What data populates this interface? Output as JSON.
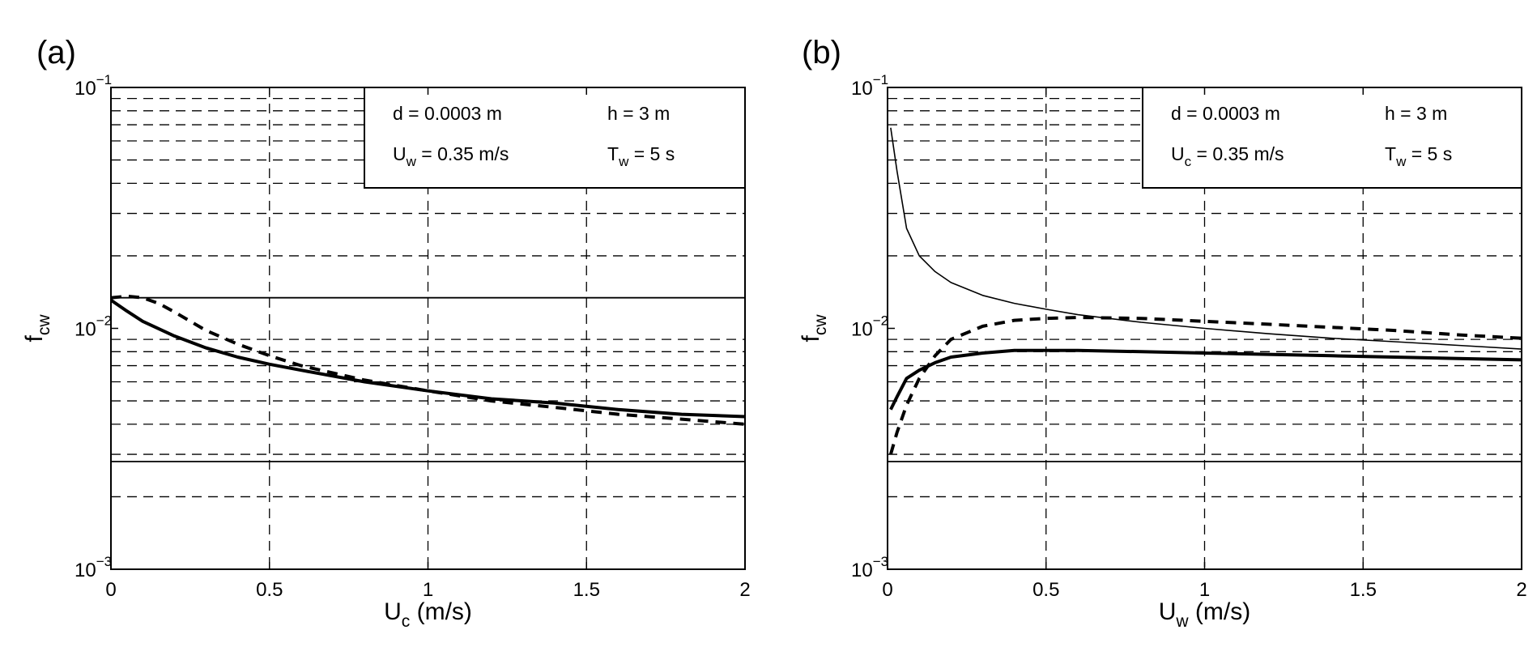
{
  "chart_data": [
    {
      "panel": "(a)",
      "type": "line",
      "xlabel": {
        "main": "U",
        "sub": "c",
        "unit": "(m/s)"
      },
      "ylabel": {
        "main": "f",
        "sub": "cw"
      },
      "xlim": [
        0,
        2
      ],
      "ylim": [
        0.001,
        0.1
      ],
      "yscale": "log",
      "grid": true,
      "xticks": [
        "0",
        "0.5",
        "1",
        "1.5",
        "2"
      ],
      "yticks": [
        {
          "base": "10",
          "exp": "−3"
        },
        {
          "base": "10",
          "exp": "−2"
        },
        {
          "base": "10",
          "exp": "−1"
        }
      ],
      "annotation": {
        "items": [
          {
            "main": "d = 0.0003 m",
            "sub": "",
            "rest": ""
          },
          {
            "main": "h = 3 m",
            "sub": "",
            "rest": ""
          },
          {
            "main": "U",
            "sub": "w",
            "rest": " = 0.35 m/s"
          },
          {
            "main": "T",
            "sub": "w",
            "rest": " = 5 s"
          }
        ]
      },
      "hlines": [
        0.0134,
        0.0028
      ],
      "series": [
        {
          "style": "solid-thick",
          "x": [
            0,
            0.05,
            0.1,
            0.2,
            0.3,
            0.4,
            0.5,
            0.6,
            0.8,
            1.0,
            1.2,
            1.4,
            1.6,
            1.8,
            2.0
          ],
          "y": [
            0.0131,
            0.0118,
            0.0107,
            0.0093,
            0.0083,
            0.0076,
            0.0071,
            0.0067,
            0.006,
            0.0055,
            0.0051,
            0.0049,
            0.0046,
            0.0044,
            0.0043
          ]
        },
        {
          "style": "dashed-thick",
          "x": [
            0,
            0.05,
            0.1,
            0.15,
            0.2,
            0.3,
            0.4,
            0.5,
            0.6,
            0.8,
            1.0,
            1.2,
            1.4,
            1.6,
            1.8,
            2.0
          ],
          "y": [
            0.0134,
            0.0136,
            0.0134,
            0.0127,
            0.0117,
            0.0098,
            0.0086,
            0.0077,
            0.007,
            0.0061,
            0.0055,
            0.005,
            0.0047,
            0.0044,
            0.0042,
            0.004
          ]
        }
      ]
    },
    {
      "panel": "(b)",
      "type": "line",
      "xlabel": {
        "main": "U",
        "sub": "w",
        "unit": "(m/s)"
      },
      "ylabel": {
        "main": "f",
        "sub": "cw"
      },
      "xlim": [
        0,
        2
      ],
      "ylim": [
        0.001,
        0.1
      ],
      "yscale": "log",
      "grid": true,
      "xticks": [
        "0",
        "0.5",
        "1",
        "1.5",
        "2"
      ],
      "yticks": [
        {
          "base": "10",
          "exp": "−3"
        },
        {
          "base": "10",
          "exp": "−2"
        },
        {
          "base": "10",
          "exp": "−1"
        }
      ],
      "annotation": {
        "items": [
          {
            "main": "d = 0.0003 m",
            "sub": "",
            "rest": ""
          },
          {
            "main": "h = 3 m",
            "sub": "",
            "rest": ""
          },
          {
            "main": "U",
            "sub": "c",
            "rest": " = 0.35 m/s"
          },
          {
            "main": "T",
            "sub": "w",
            "rest": " = 5 s"
          }
        ]
      },
      "hlines": [
        0.0028
      ],
      "series": [
        {
          "style": "solid-thin",
          "x": [
            0.01,
            0.03,
            0.06,
            0.1,
            0.15,
            0.2,
            0.3,
            0.4,
            0.5,
            0.6,
            0.8,
            1.0,
            1.2,
            1.4,
            1.6,
            1.8,
            2.0
          ],
          "y": [
            0.068,
            0.045,
            0.026,
            0.02,
            0.0172,
            0.0155,
            0.0137,
            0.0127,
            0.012,
            0.0114,
            0.0106,
            0.01,
            0.0095,
            0.0091,
            0.0088,
            0.0085,
            0.0082
          ]
        },
        {
          "style": "solid-thick",
          "x": [
            0.01,
            0.03,
            0.06,
            0.1,
            0.15,
            0.2,
            0.3,
            0.4,
            0.5,
            0.6,
            0.8,
            1.0,
            1.2,
            1.4,
            1.6,
            1.8,
            2.0
          ],
          "y": [
            0.0046,
            0.0052,
            0.0062,
            0.0067,
            0.0072,
            0.0076,
            0.0079,
            0.0081,
            0.0081,
            0.0081,
            0.008,
            0.0079,
            0.0078,
            0.0077,
            0.0076,
            0.0075,
            0.0074
          ]
        },
        {
          "style": "dashed-thick",
          "x": [
            0.01,
            0.03,
            0.06,
            0.1,
            0.15,
            0.2,
            0.3,
            0.4,
            0.5,
            0.6,
            0.8,
            1.0,
            1.2,
            1.4,
            1.6,
            1.8,
            2.0
          ],
          "y": [
            0.003,
            0.0037,
            0.0048,
            0.0062,
            0.0077,
            0.009,
            0.0102,
            0.0108,
            0.011,
            0.0111,
            0.011,
            0.0107,
            0.0104,
            0.0101,
            0.0098,
            0.0094,
            0.0091
          ]
        }
      ]
    }
  ]
}
